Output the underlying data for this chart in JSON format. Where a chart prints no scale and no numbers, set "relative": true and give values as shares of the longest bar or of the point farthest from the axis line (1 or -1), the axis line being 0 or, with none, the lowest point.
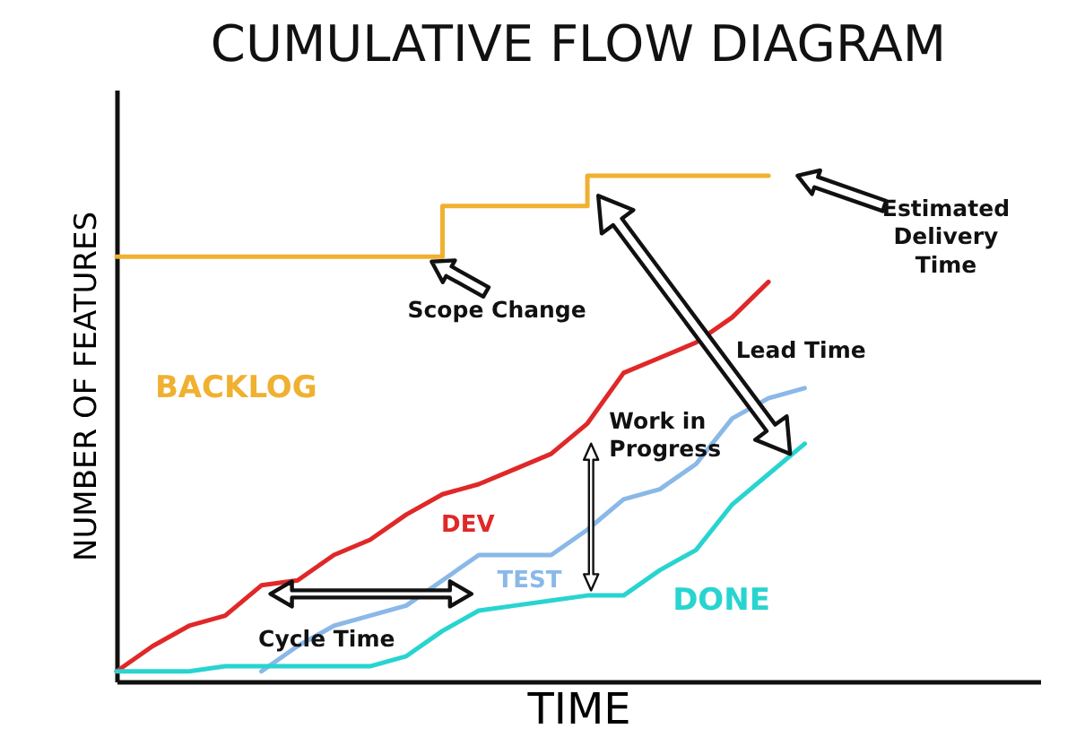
{
  "chart_data": {
    "type": "line",
    "title": "CUMULATIVE FLOW DIAGRAM",
    "xlabel": "TIME",
    "ylabel": "NUMBER OF FEATURES",
    "relative": true,
    "legend": false,
    "grid": false,
    "tick_labels": false,
    "categories": [
      null,
      null,
      null,
      null,
      null,
      null,
      null,
      null,
      null,
      null,
      null,
      null,
      null,
      null,
      null,
      null,
      null,
      null,
      null,
      null
    ],
    "series": [
      {
        "name": "BACKLOG",
        "type": "step",
        "color": "#f0b030",
        "values": [
          0.84,
          0.84,
          0.84,
          0.84,
          0.84,
          0.84,
          0.84,
          0.84,
          0.84,
          0.94,
          0.94,
          0.94,
          0.94,
          1,
          1,
          1,
          1,
          1,
          1,
          null
        ]
      },
      {
        "name": "DEV",
        "color": "#e02828",
        "values": [
          0.02,
          0.07,
          0.11,
          0.13,
          0.19,
          0.2,
          0.25,
          0.28,
          0.33,
          0.37,
          0.39,
          0.42,
          0.45,
          0.51,
          0.61,
          0.64,
          0.67,
          0.72,
          0.79,
          null
        ]
      },
      {
        "name": "TEST",
        "color": "#8ab8e8",
        "values": [
          null,
          null,
          null,
          null,
          0.02,
          0.07,
          0.11,
          0.13,
          0.15,
          0.2,
          0.25,
          0.25,
          0.25,
          0.3,
          0.36,
          0.38,
          0.43,
          0.52,
          0.56,
          0.58
        ]
      },
      {
        "name": "DONE",
        "color": "#28d4d0",
        "values": [
          0.02,
          0.02,
          0.02,
          0.03,
          0.03,
          0.03,
          0.03,
          0.03,
          0.05,
          0.1,
          0.14,
          0.15,
          0.16,
          0.17,
          0.17,
          0.22,
          0.26,
          0.35,
          0.41,
          0.47
        ]
      }
    ],
    "annotations": [
      "Scope Change",
      "Estimated Delivery Time",
      "Lead Time",
      "Work in Progress",
      "Cycle Time"
    ]
  }
}
